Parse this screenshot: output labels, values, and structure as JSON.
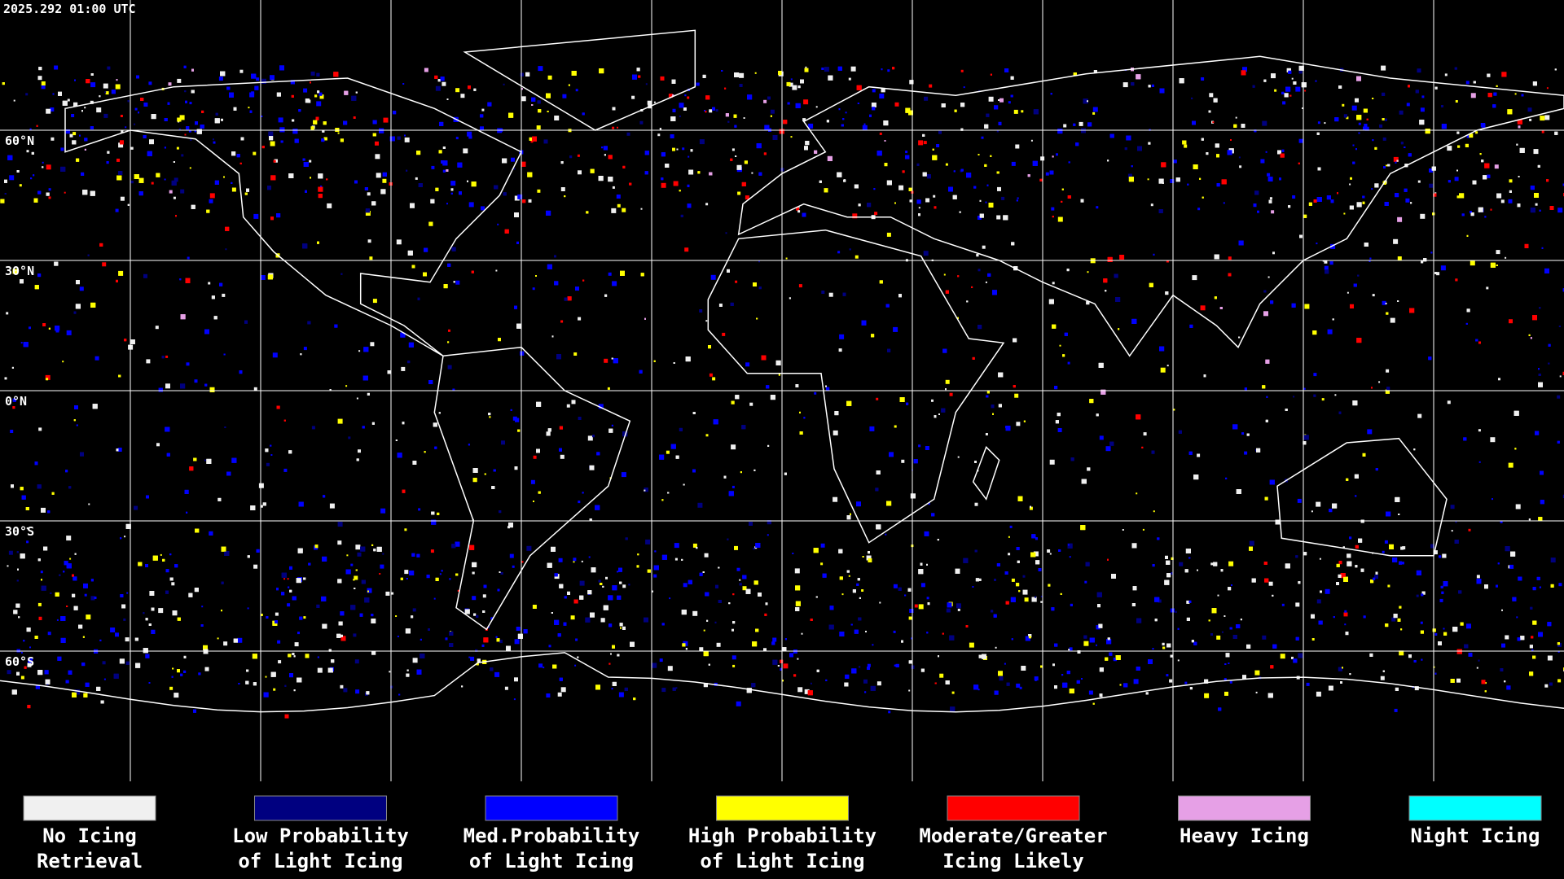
{
  "header": {
    "timestamp": "2025.292 01:00 UTC"
  },
  "map": {
    "lat_labels": [
      "60°N",
      "30°N",
      "0°N",
      "30°S",
      "60°S"
    ]
  },
  "legend": [
    {
      "lines": [
        "No Icing",
        "Retrieval"
      ],
      "color": "#f0f0f0"
    },
    {
      "lines": [
        "Low Probability",
        "of Light Icing"
      ],
      "color": "#000080"
    },
    {
      "lines": [
        "Med.Probability",
        "of Light Icing"
      ],
      "color": "#0000ff"
    },
    {
      "lines": [
        "High Probability",
        "of Light Icing"
      ],
      "color": "#ffff00"
    },
    {
      "lines": [
        "Moderate/Greater",
        "Icing Likely"
      ],
      "color": "#ff0000"
    },
    {
      "lines": [
        "Heavy Icing"
      ],
      "color": "#e6a0e6"
    },
    {
      "lines": [
        "Night Icing"
      ],
      "color": "#00ffff"
    }
  ]
}
